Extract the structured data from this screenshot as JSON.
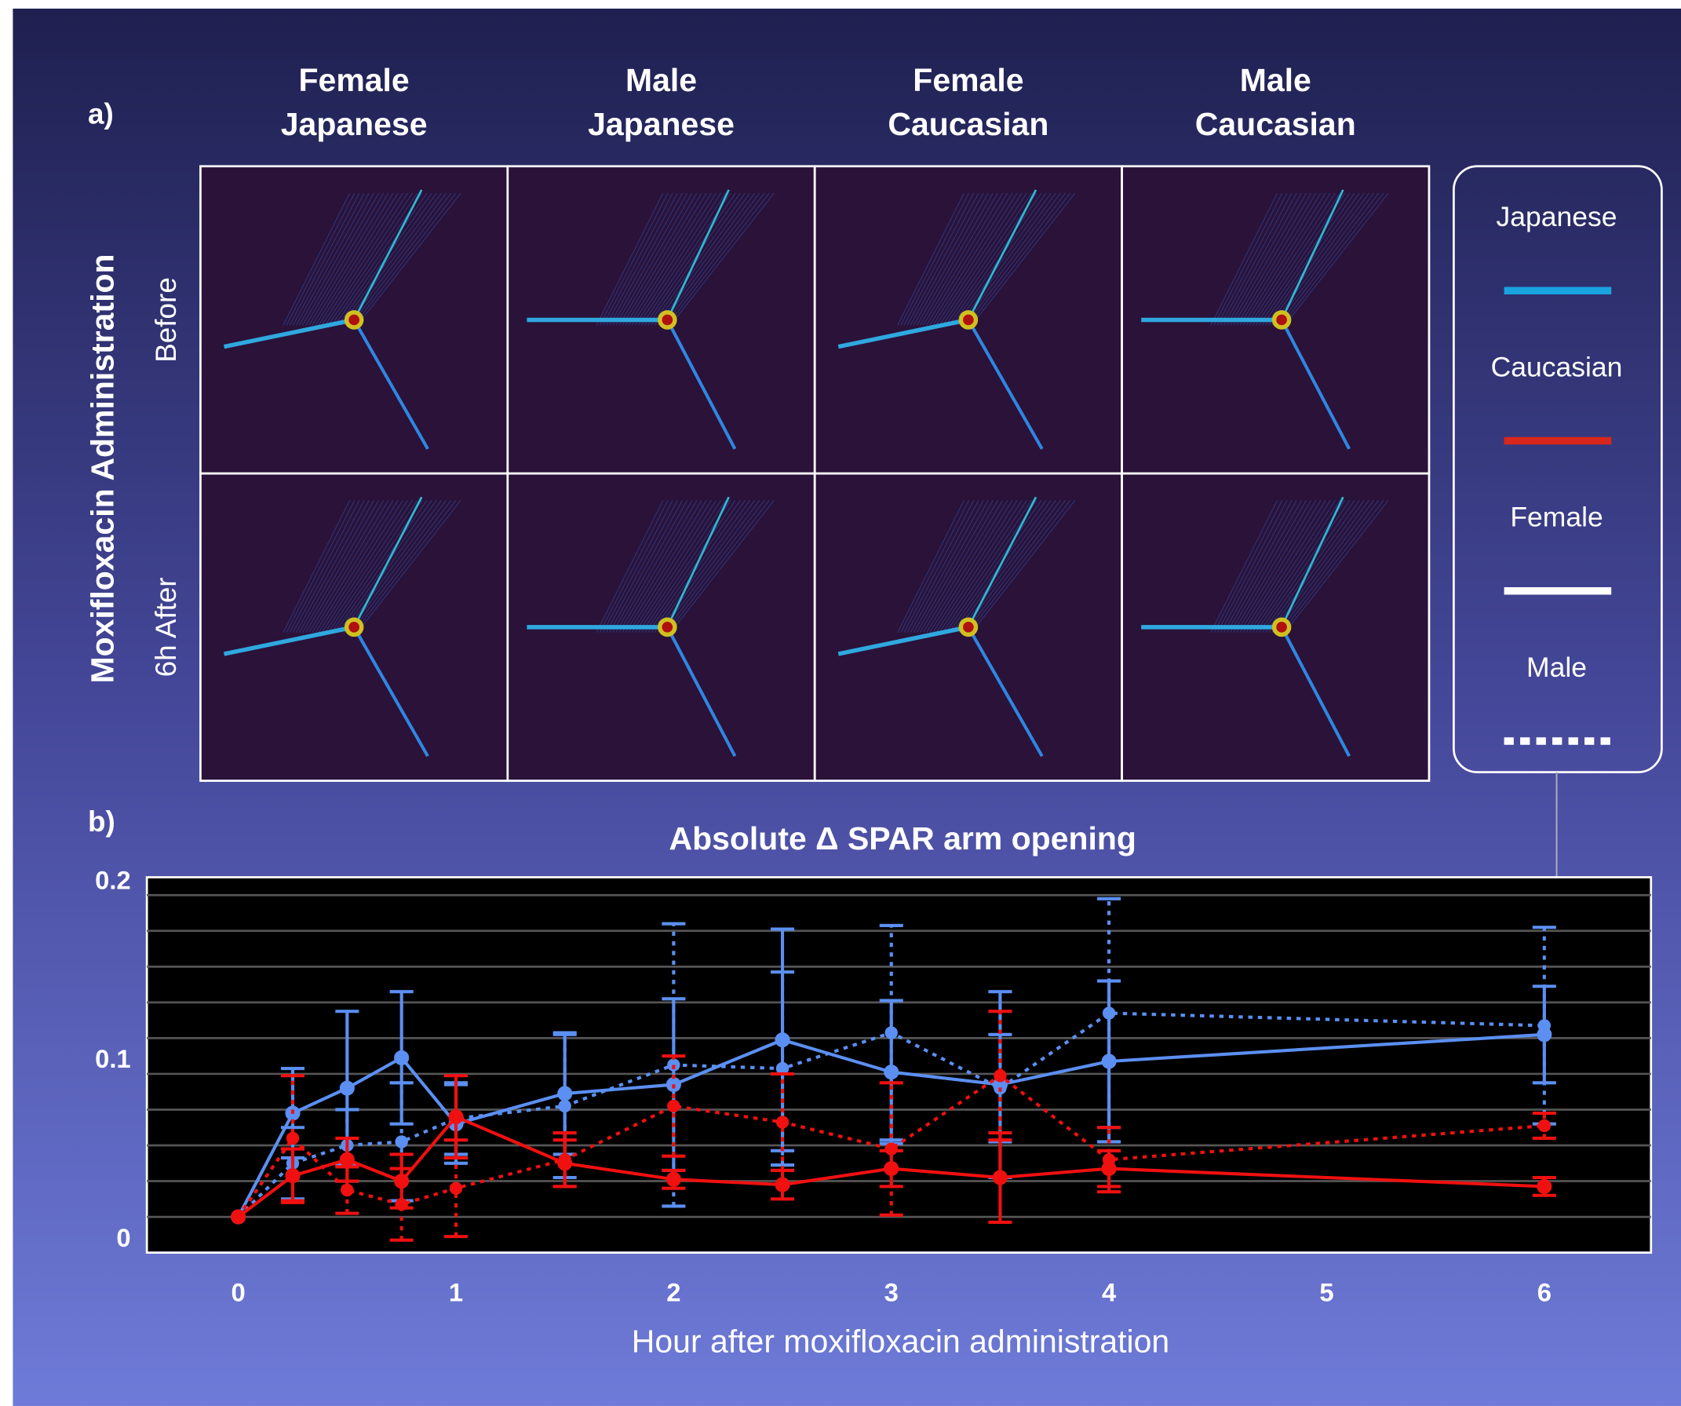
{
  "panel_a": {
    "label": "a)",
    "columns": [
      [
        "Female",
        "Japanese"
      ],
      [
        "Male",
        "Japanese"
      ],
      [
        "Female",
        "Caucasian"
      ],
      [
        "Male",
        "Caucasian"
      ]
    ],
    "rows": [
      "Before",
      "6h After"
    ],
    "row_title": "Moxifloxacin Administration"
  },
  "legend": [
    {
      "label": "Japanese",
      "color": "#19a3e0",
      "style": "solid"
    },
    {
      "label": "Caucasian",
      "color": "#d8261a",
      "style": "solid"
    },
    {
      "label": "Female",
      "color": "#ffffff",
      "style": "solid"
    },
    {
      "label": "Male",
      "color": "#ffffff",
      "style": "dotted"
    }
  ],
  "panel_b": {
    "label": "b)"
  },
  "chart_data": {
    "type": "line",
    "title": "Absolute Δ SPAR arm opening",
    "xlabel": "Hour after moxifloxacin administration",
    "x": [
      0,
      0.25,
      0.5,
      0.75,
      1,
      1.5,
      2,
      2.5,
      3,
      3.5,
      4,
      6
    ],
    "xlim": [
      -0.42,
      6.49
    ],
    "xticks": [
      0,
      1,
      2,
      3,
      4,
      5,
      6
    ],
    "ylim": [
      0,
      0.21
    ],
    "yticks": [
      0,
      0.1,
      0.2
    ],
    "ygrid": [
      0.02,
      0.04,
      0.06,
      0.08,
      0.1,
      0.12,
      0.14,
      0.16,
      0.18,
      0.2
    ],
    "series": [
      {
        "color": "#5b8ff2",
        "style": "solid",
        "values": [
          0.02,
          0.078,
          0.092,
          0.109,
          0.072,
          0.089,
          0.094,
          0.119,
          0.101,
          0.094,
          0.107,
          0.122
        ],
        "errors": [
          0,
          0.025,
          0.043,
          0.037,
          0.022,
          0.034,
          0.048,
          0.062,
          0.04,
          0.052,
          0.045,
          0.027
        ]
      },
      {
        "color": "#5b8ff2",
        "style": "dotted",
        "values": [
          0.02,
          0.05,
          0.06,
          0.062,
          0.075,
          0.082,
          0.105,
          0.103,
          0.123,
          0.092,
          0.134,
          0.127
        ],
        "errors": [
          0,
          0.02,
          0.02,
          0.033,
          0.02,
          0.04,
          0.079,
          0.054,
          0.06,
          0.03,
          0.064,
          0.055
        ]
      },
      {
        "color": "#f01010",
        "style": "solid",
        "values": [
          0.02,
          0.043,
          0.052,
          0.04,
          0.076,
          0.05,
          0.041,
          0.038,
          0.047,
          0.042,
          0.047,
          0.037
        ],
        "errors": [
          0,
          0.015,
          0.012,
          0.015,
          0.023,
          0.013,
          0.005,
          0.008,
          0.01,
          0.025,
          0.01,
          0.005
        ]
      },
      {
        "color": "#f01010",
        "style": "dotted",
        "values": [
          0.02,
          0.064,
          0.035,
          0.027,
          0.036,
          0.052,
          0.082,
          0.073,
          0.058,
          0.099,
          0.052,
          0.071
        ],
        "errors": [
          0,
          0.035,
          0.013,
          0.02,
          0.027,
          0.015,
          0.028,
          0.027,
          0.037,
          0.036,
          0.018,
          0.007
        ]
      }
    ]
  }
}
